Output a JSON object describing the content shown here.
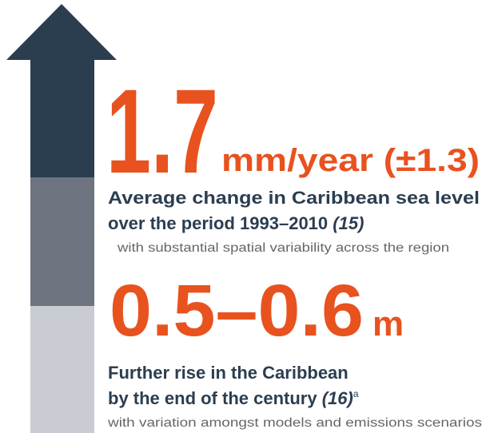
{
  "stat1": {
    "value": "1.7",
    "unit": "mm/year (±1.3)",
    "heading_line1": "Average change in Caribbean sea level",
    "heading_line2": "over the period 1993–2010",
    "ref": "(15)",
    "note": "with substantial spatial variability across the region"
  },
  "stat2": {
    "value": "0.5–0.6",
    "unit": "m",
    "heading_line1": "Further rise in the Caribbean",
    "heading_line2": "by the end of the century",
    "ref": "(16)",
    "footnote": "a",
    "note": "with variation amongst models and emissions scenarios"
  }
}
